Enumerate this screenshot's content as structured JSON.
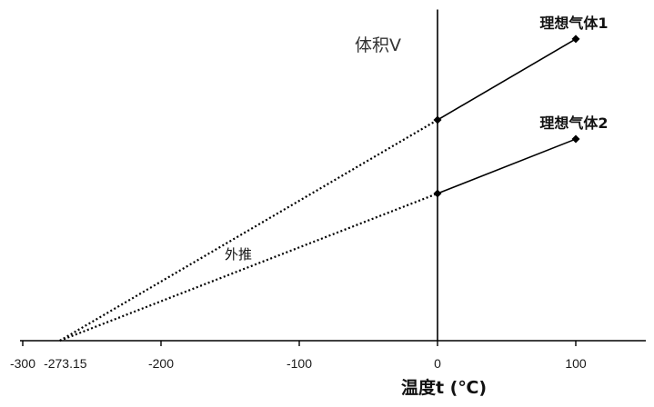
{
  "chart_data": {
    "type": "line",
    "xlabel": "温度t (℃)",
    "ylabel": "体积V",
    "xlim": [
      -300,
      150
    ],
    "ylim": [
      0,
      2.25
    ],
    "x_ticks": [
      {
        "value": -300,
        "label": "-300"
      },
      {
        "value": -273.15,
        "label": "-273.15"
      },
      {
        "value": -200,
        "label": "-200"
      },
      {
        "value": -100,
        "label": "-100"
      },
      {
        "value": 0,
        "label": "0"
      },
      {
        "value": 100,
        "label": "100"
      }
    ],
    "y_ticks": [],
    "grid": false,
    "legend": false,
    "marker_shape": "diamond",
    "series": [
      {
        "name": "理想气体1",
        "x": [
          -273.15,
          0,
          100
        ],
        "y": [
          0,
          1.5,
          2.05
        ],
        "segment_styles": [
          "dotted",
          "solid"
        ],
        "markers": [
          false,
          true,
          true
        ]
      },
      {
        "name": "理想气体2",
        "x": [
          -273.15,
          0,
          100
        ],
        "y": [
          0,
          1.0,
          1.37
        ],
        "segment_styles": [
          "dotted",
          "solid"
        ],
        "markers": [
          false,
          true,
          true
        ]
      }
    ],
    "annotations": [
      {
        "text": "外推"
      }
    ],
    "colors": {
      "line": "#000000",
      "axis": "#000000"
    }
  }
}
